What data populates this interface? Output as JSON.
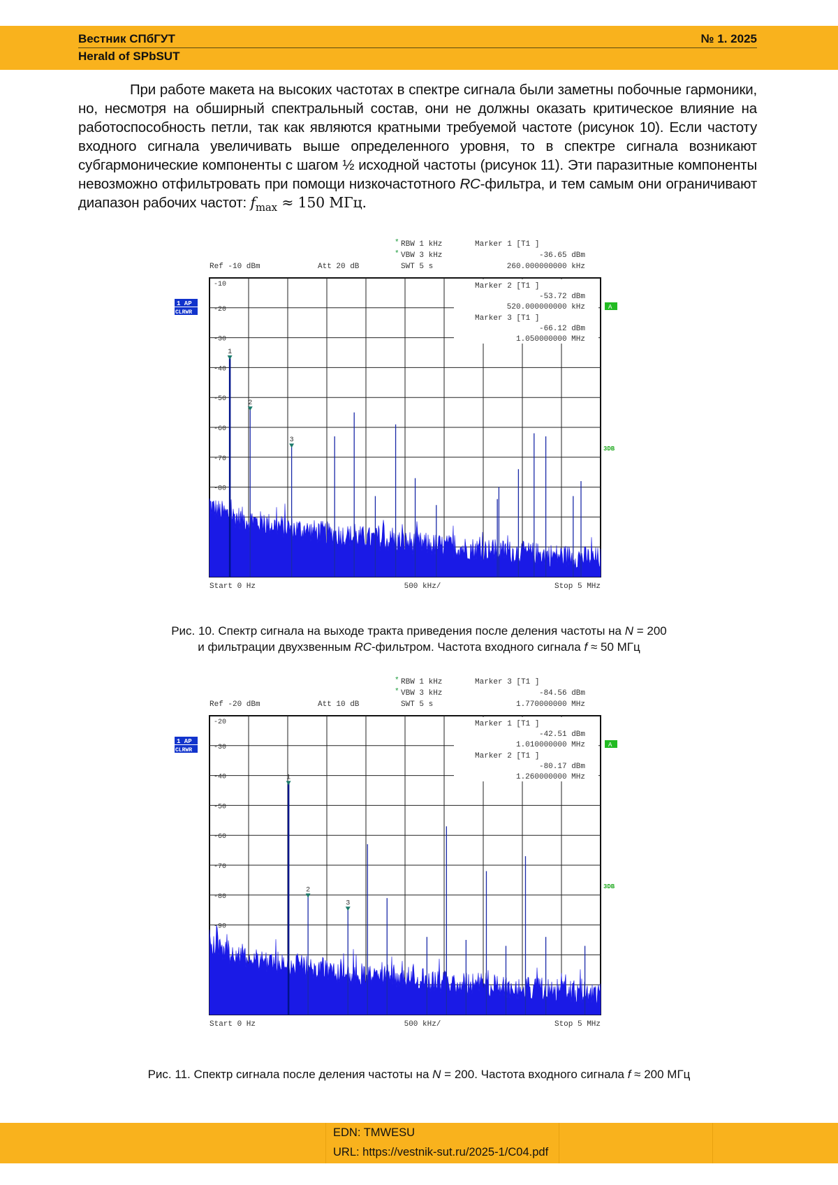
{
  "header": {
    "journal_ru": "Вестник СПбГУТ",
    "journal_en": "Herald of SPbSUT",
    "issue": "№ 1. 2025"
  },
  "paragraph": {
    "text": "При работе макета на высоких частотах в спектре сигнала были заметны побочные гармоники, но, несмотря на обширный спектральный состав, они не должны оказать критическое влияние на работоспособность петли, так как являются кратными требуемой частоте (рисунок 10). Если частоту входного сигнала увеличивать выше определенного уровня, то в спектре сигнала возникают субгармонические компоненты с шагом ½ исходной частоты (рисунок 11). Эти паразитные компоненты невозможно отфильтровать при помощи низкочастотного ",
    "rc": "RC",
    "text2": "-фильтра, и тем самым они ограничивают диапазон рабочих частот: ",
    "fmax": "f",
    "fmax_sub": "max",
    "fmax_value": " ≈ 150 МГц."
  },
  "figures": [
    {
      "caption_line1_a": "Рис. 10. Спектр сигнала на выходе тракта приведения после деления частоты на ",
      "caption_line1_N": "N",
      "caption_line1_b": " = 200",
      "caption_line2_a": "и фильтрации двухзвенным ",
      "caption_line2_rc": "RC",
      "caption_line2_b": "-фильтром. Частота входного сигнала ",
      "caption_line2_f": "f",
      "caption_line2_c": " ≈ 50 МГц",
      "analyzer": {
        "rbw": "RBW  1 kHz",
        "vbw": "VBW  3 kHz",
        "swt": "SWT  5 s",
        "ref": "Ref -10 dBm",
        "att": "Att  20 dB",
        "top_marker": {
          "title": "Marker 1 [T1 ]",
          "level": "-36.65 dBm",
          "freq": "260.000000000 kHz"
        },
        "box_markers": [
          {
            "title": "Marker 2 [T1 ]",
            "level": "-53.72 dBm",
            "freq": "520.000000000 kHz"
          },
          {
            "title": "Marker 3 [T1 ]",
            "level": "-66.12 dBm",
            "freq": "1.050000000 MHz"
          }
        ],
        "left_badge1": "1 AP",
        "left_badge2": "CLRWR",
        "right_badge_a": "A",
        "right_badge_3db": "3DB",
        "start": "Start 0 Hz",
        "div": "500 kHz/",
        "stop": "Stop 5 MHz"
      },
      "chart_data": {
        "type": "line",
        "title": "",
        "xlabel": "",
        "ylabel": "",
        "xlim": [
          0,
          5
        ],
        "x_unit": "MHz",
        "ylim": [
          -110,
          -10
        ],
        "y_unit": "dBm",
        "ytick_labels": [
          "-10",
          "-20",
          "-30",
          "-40",
          "-50",
          "-60",
          "-70",
          "-80"
        ],
        "grid": true,
        "noise_floor_dbm": [
          -85,
          -104
        ],
        "peaks": [
          {
            "x": 0.26,
            "y": -36.65,
            "marker": "1"
          },
          {
            "x": 0.52,
            "y": -53.72,
            "marker": "2"
          },
          {
            "x": 1.05,
            "y": -66.12,
            "marker": "3"
          },
          {
            "x": 1.6,
            "y": -63
          },
          {
            "x": 1.85,
            "y": -55
          },
          {
            "x": 2.12,
            "y": -83
          },
          {
            "x": 2.38,
            "y": -59
          },
          {
            "x": 2.63,
            "y": -77
          },
          {
            "x": 2.9,
            "y": -86
          },
          {
            "x": 3.68,
            "y": -84
          },
          {
            "x": 3.7,
            "y": -80
          },
          {
            "x": 3.95,
            "y": -74
          },
          {
            "x": 4.15,
            "y": -62
          },
          {
            "x": 4.3,
            "y": -63
          },
          {
            "x": 4.65,
            "y": -83
          },
          {
            "x": 4.75,
            "y": -78
          }
        ]
      }
    },
    {
      "caption_line1_a": "Рис. 11. Спектр сигнала после деления частоты на ",
      "caption_line1_N": "N",
      "caption_line1_b": " = 200. Частота входного сигнала ",
      "caption_line1_f": "f",
      "caption_line1_c": " ≈ 200 МГц",
      "analyzer": {
        "rbw": "RBW  1 kHz",
        "vbw": "VBW  3 kHz",
        "swt": "SWT  5 s",
        "ref": "Ref -20 dBm",
        "att": "Att  10 dB",
        "top_marker": {
          "title": "Marker 3 [T1 ]",
          "level": "-84.56 dBm",
          "freq": "1.770000000 MHz"
        },
        "box_markers": [
          {
            "title": "Marker 1 [T1 ]",
            "level": "-42.51 dBm",
            "freq": "1.010000000 MHz"
          },
          {
            "title": "Marker 2 [T1 ]",
            "level": "-80.17 dBm",
            "freq": "1.260000000 MHz"
          }
        ],
        "left_badge1": "1 AP",
        "left_badge2": "CLRWR",
        "right_badge_a": "A",
        "right_badge_3db": "3DB",
        "start": "Start 0 Hz",
        "div": "500 kHz/",
        "stop": "Stop 5 MHz"
      },
      "chart_data": {
        "type": "line",
        "title": "",
        "xlabel": "",
        "ylabel": "",
        "xlim": [
          0,
          5
        ],
        "x_unit": "MHz",
        "ylim": [
          -120,
          -20
        ],
        "y_unit": "dBm",
        "ytick_labels": [
          "-20",
          "-30",
          "-40",
          "-50",
          "-60",
          "-70",
          "-80",
          "-90"
        ],
        "grid": true,
        "noise_floor_dbm": [
          -95,
          -113
        ],
        "peaks": [
          {
            "x": 1.01,
            "y": -42.51,
            "marker": "1"
          },
          {
            "x": 1.26,
            "y": -80.17,
            "marker": "2"
          },
          {
            "x": 1.77,
            "y": -84.56,
            "marker": "3"
          },
          {
            "x": 2.02,
            "y": -63
          },
          {
            "x": 2.27,
            "y": -81
          },
          {
            "x": 2.78,
            "y": -94
          },
          {
            "x": 3.03,
            "y": -57
          },
          {
            "x": 3.28,
            "y": -95
          },
          {
            "x": 3.54,
            "y": -72
          },
          {
            "x": 3.79,
            "y": -97
          },
          {
            "x": 4.04,
            "y": -67
          },
          {
            "x": 4.3,
            "y": -94
          },
          {
            "x": 4.8,
            "y": -97
          }
        ]
      }
    }
  ],
  "footer": {
    "edn": "EDN: TMWESU",
    "url": "URL: https://vestnik-sut.ru/2025-1/C04.pdf"
  }
}
